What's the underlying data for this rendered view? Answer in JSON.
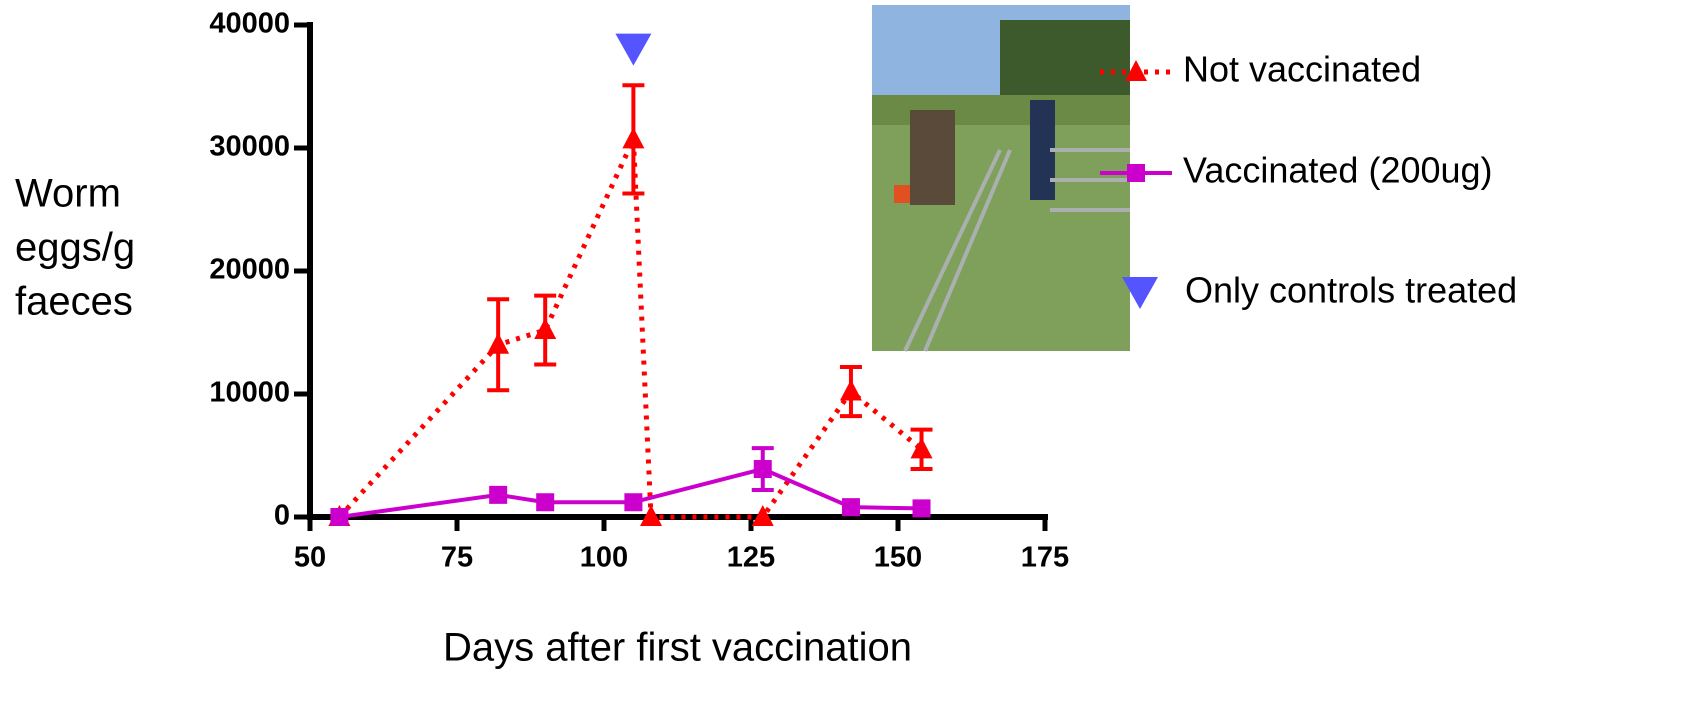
{
  "chart_data": {
    "type": "line",
    "xlabel": "Days after first vaccination",
    "ylabel_lines": [
      "Worm",
      "eggs/g",
      "faeces"
    ],
    "xlim": [
      50,
      175
    ],
    "xticks": [
      50,
      75,
      100,
      125,
      150,
      175
    ],
    "ylim": [
      0,
      40000
    ],
    "yticks": [
      0,
      10000,
      20000,
      30000,
      40000
    ],
    "series": [
      {
        "name": "Not vaccinated",
        "color": "#ff0000",
        "line_style": "dotted",
        "marker": "triangle",
        "x": [
          55,
          82,
          90,
          105,
          108,
          127,
          142,
          154
        ],
        "values": [
          0,
          14000,
          15200,
          30700,
          0,
          0,
          10200,
          5500
        ],
        "errors": [
          null,
          3700,
          2800,
          4400,
          null,
          null,
          2000,
          1600
        ]
      },
      {
        "name": "Vaccinated (200ug)",
        "color": "#cc00cc",
        "line_style": "solid",
        "marker": "square",
        "x": [
          55,
          82,
          90,
          105,
          127,
          142,
          154
        ],
        "values": [
          0,
          1800,
          1200,
          1200,
          3900,
          800,
          700
        ],
        "errors": [
          null,
          null,
          null,
          null,
          1700,
          null,
          null
        ]
      }
    ],
    "treatment_marker": {
      "label": "Only controls treated",
      "x": 105,
      "y": 38000,
      "color": "#5555ff"
    }
  }
}
